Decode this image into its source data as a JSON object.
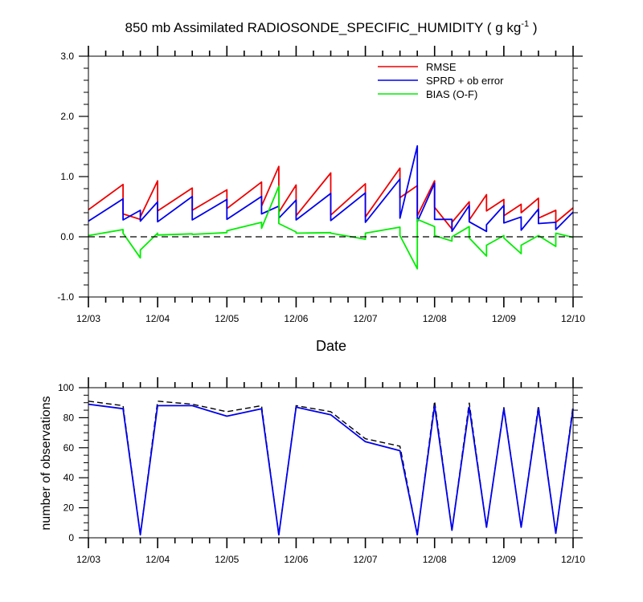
{
  "chart_data": [
    {
      "type": "line",
      "title_main": "850 mb Assimilated RADIOSONDE_SPECIFIC_HUMIDITY ( g kg",
      "title_sup": "-1",
      "title_end": " )",
      "xlabel": "Date",
      "ylabel": "",
      "xlim": [
        0,
        7
      ],
      "ylim": [
        -1.0,
        3.0
      ],
      "y_ticks": [
        -1.0,
        0.0,
        1.0,
        2.0,
        3.0
      ],
      "y_tick_labels": [
        "-1.0",
        "0.0",
        "1.0",
        "2.0",
        "3.0"
      ],
      "x_ticks": [
        0,
        1,
        2,
        3,
        4,
        5,
        6,
        7
      ],
      "x_tick_labels": [
        "12/03",
        "12/04",
        "12/05",
        "12/06",
        "12/07",
        "12/08",
        "12/09",
        "12/10"
      ],
      "legend": [
        "RMSE",
        "SPRD + ob error",
        "BIAS (O-F)"
      ],
      "legend_position": "top-right",
      "zero_line": "dashed",
      "colors": {
        "rmse": "#ee0000",
        "sprd": "#0000ee",
        "bias": "#00ee00"
      },
      "series": [
        {
          "name": "RMSE",
          "x": [
            0,
            0.5,
            0.5,
            0.75,
            0.75,
            1.0,
            1.0,
            1.5,
            1.5,
            2.0,
            2.0,
            2.5,
            2.5,
            2.75,
            2.75,
            3.0,
            3.0,
            3.5,
            3.5,
            4.0,
            4.0,
            4.5,
            4.5,
            4.75,
            4.75,
            5.0,
            5.0,
            5.25,
            5.25,
            5.5,
            5.5,
            5.75,
            5.75,
            6.0,
            6.0,
            6.25,
            6.25,
            6.5,
            6.5,
            6.75,
            6.75,
            7.0
          ],
          "y": [
            0.45,
            0.87,
            0.38,
            0.29,
            0.33,
            0.93,
            0.43,
            0.81,
            0.44,
            0.78,
            0.47,
            0.91,
            0.51,
            1.17,
            0.41,
            0.86,
            0.35,
            1.06,
            0.36,
            0.88,
            0.33,
            1.14,
            0.65,
            0.85,
            0.35,
            0.93,
            0.49,
            0.13,
            0.24,
            0.58,
            0.28,
            0.7,
            0.43,
            0.62,
            0.35,
            0.54,
            0.4,
            0.64,
            0.31,
            0.44,
            0.24,
            0.48
          ]
        },
        {
          "name": "SPRD + ob error",
          "x": [
            0,
            0.5,
            0.5,
            0.75,
            0.75,
            1.0,
            1.0,
            1.5,
            1.5,
            2.0,
            2.0,
            2.5,
            2.5,
            2.75,
            2.75,
            3.0,
            3.0,
            3.5,
            3.5,
            4.0,
            4.0,
            4.5,
            4.5,
            4.75,
            4.75,
            5.0,
            5.0,
            5.25,
            5.25,
            5.5,
            5.5,
            5.75,
            5.75,
            6.0,
            6.0,
            6.25,
            6.25,
            6.5,
            6.5,
            6.75,
            6.75,
            7.0
          ],
          "y": [
            0.26,
            0.63,
            0.28,
            0.44,
            0.26,
            0.58,
            0.25,
            0.67,
            0.28,
            0.62,
            0.29,
            0.67,
            0.38,
            0.51,
            0.31,
            0.61,
            0.28,
            0.72,
            0.27,
            0.73,
            0.24,
            0.96,
            0.31,
            1.51,
            0.25,
            0.89,
            0.29,
            0.29,
            0.09,
            0.52,
            0.25,
            0.09,
            0.2,
            0.52,
            0.23,
            0.33,
            0.11,
            0.46,
            0.22,
            0.24,
            0.12,
            0.41
          ]
        },
        {
          "name": "BIAS (O-F)",
          "x": [
            0,
            0.5,
            0.5,
            0.75,
            0.75,
            1.0,
            1.0,
            1.5,
            1.5,
            2.0,
            2.0,
            2.5,
            2.5,
            2.75,
            2.75,
            3.0,
            3.0,
            3.5,
            3.5,
            4.0,
            4.0,
            4.5,
            4.5,
            4.75,
            4.75,
            5.0,
            5.0,
            5.25,
            5.25,
            5.5,
            5.5,
            5.75,
            5.75,
            6.0,
            6.0,
            6.25,
            6.25,
            6.5,
            6.5,
            6.75,
            6.75,
            7.0
          ],
          "y": [
            0.02,
            0.12,
            0.06,
            -0.35,
            -0.22,
            0.06,
            0.03,
            0.05,
            0.04,
            0.07,
            0.1,
            0.24,
            0.14,
            0.84,
            0.22,
            0.08,
            0.06,
            0.07,
            0.06,
            -0.04,
            0.06,
            0.16,
            0.02,
            -0.53,
            0.29,
            0.17,
            0.02,
            -0.07,
            0.0,
            0.17,
            -0.02,
            -0.32,
            -0.14,
            0.02,
            -0.02,
            -0.28,
            -0.14,
            0.02,
            0.02,
            -0.16,
            0.06,
            -0.01
          ]
        }
      ]
    },
    {
      "type": "line",
      "xlabel": "",
      "ylabel": "number of observations",
      "xlim": [
        0,
        7
      ],
      "ylim": [
        0,
        100
      ],
      "y_ticks": [
        0,
        20,
        40,
        60,
        80,
        100
      ],
      "y_tick_labels": [
        "0",
        "20",
        "40",
        "60",
        "80",
        "100"
      ],
      "x_ticks": [
        0,
        1,
        2,
        3,
        4,
        5,
        6,
        7
      ],
      "x_tick_labels": [
        "12/03",
        "12/04",
        "12/05",
        "12/06",
        "12/07",
        "12/08",
        "12/09",
        "12/10"
      ],
      "colors": {
        "used": "#0000ee",
        "possible": "#000000"
      },
      "series": [
        {
          "name": "used",
          "x": [
            0,
            0.5,
            0.75,
            1.0,
            1.5,
            2.0,
            2.5,
            2.75,
            3.0,
            3.5,
            4.0,
            4.5,
            4.75,
            5.0,
            5.25,
            5.5,
            5.75,
            6.0,
            6.25,
            6.5,
            6.75,
            7.0
          ],
          "y": [
            89,
            86,
            2,
            88,
            88,
            81,
            86,
            2,
            87,
            82,
            64,
            58,
            2,
            88,
            5,
            87,
            7,
            86,
            7,
            86,
            3,
            86
          ]
        },
        {
          "name": "possible",
          "x": [
            0,
            0.5,
            0.75,
            1.0,
            1.5,
            2.0,
            2.5,
            2.75,
            3.0,
            3.5,
            4.0,
            4.5,
            4.75,
            5.0,
            5.25,
            5.5,
            5.75,
            6.0,
            6.25,
            6.5,
            6.75,
            7.0
          ],
          "y": [
            91,
            88,
            2,
            91,
            89,
            84,
            88,
            2,
            88,
            84,
            66,
            61,
            2,
            91,
            5,
            90,
            7,
            87,
            7,
            88,
            3,
            88
          ]
        }
      ]
    }
  ]
}
